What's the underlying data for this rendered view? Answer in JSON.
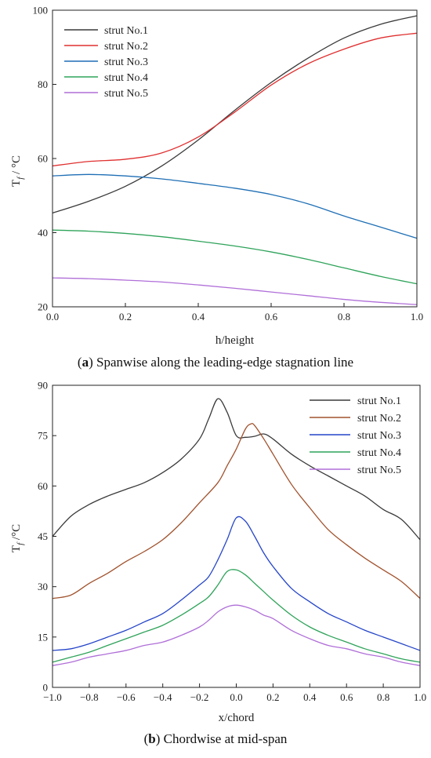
{
  "chart_data": [
    {
      "type": "line",
      "caption_letter": "a",
      "caption_text": "Spanwise along the leading-edge stagnation line",
      "xlabel": "h/height",
      "ylabel_main": "T",
      "ylabel_sub": "f",
      "ylabel_unit": " / °C",
      "xlim": [
        0.0,
        1.0
      ],
      "ylim": [
        20,
        100
      ],
      "xticks": [
        0.0,
        0.2,
        0.4,
        0.6,
        0.8,
        1.0
      ],
      "xtick_labels": [
        "0.0",
        "0.2",
        "0.4",
        "0.6",
        "0.8",
        "1.0"
      ],
      "yticks": [
        20,
        40,
        60,
        80,
        100
      ],
      "ytick_labels": [
        "20",
        "40",
        "60",
        "80",
        "100"
      ],
      "legend_position": "top-left",
      "series": [
        {
          "name": "strut No.1",
          "color": "#3a3a3a",
          "x": [
            0.0,
            0.1,
            0.2,
            0.3,
            0.4,
            0.5,
            0.6,
            0.7,
            0.8,
            0.9,
            1.0
          ],
          "y": [
            45.3,
            48.5,
            52.5,
            58.0,
            65.0,
            73.0,
            80.5,
            87.0,
            92.5,
            96.2,
            98.5
          ]
        },
        {
          "name": "strut No.2",
          "color": "#e03030",
          "x": [
            0.0,
            0.1,
            0.2,
            0.3,
            0.4,
            0.5,
            0.6,
            0.7,
            0.8,
            0.9,
            1.0
          ],
          "y": [
            58.0,
            59.2,
            59.8,
            61.5,
            65.8,
            72.5,
            79.8,
            85.5,
            89.5,
            92.5,
            93.8
          ]
        },
        {
          "name": "strut No.3",
          "color": "#1f6fb5",
          "x": [
            0.0,
            0.1,
            0.2,
            0.3,
            0.4,
            0.5,
            0.6,
            0.7,
            0.8,
            0.9,
            1.0
          ],
          "y": [
            55.3,
            55.7,
            55.3,
            54.5,
            53.3,
            52.0,
            50.3,
            47.8,
            44.5,
            41.5,
            38.5
          ]
        },
        {
          "name": "strut No.4",
          "color": "#2fa35a",
          "x": [
            0.0,
            0.1,
            0.2,
            0.3,
            0.4,
            0.5,
            0.6,
            0.7,
            0.8,
            0.9,
            1.0
          ],
          "y": [
            40.7,
            40.4,
            39.8,
            38.9,
            37.7,
            36.4,
            34.8,
            32.8,
            30.5,
            28.2,
            26.2
          ]
        },
        {
          "name": "strut No.5",
          "color": "#b06fd8",
          "x": [
            0.0,
            0.1,
            0.2,
            0.3,
            0.4,
            0.5,
            0.6,
            0.7,
            0.8,
            0.9,
            1.0
          ],
          "y": [
            27.8,
            27.6,
            27.2,
            26.7,
            25.9,
            25.0,
            24.0,
            23.0,
            22.0,
            21.2,
            20.6
          ]
        }
      ]
    },
    {
      "type": "line",
      "caption_letter": "b",
      "caption_text": "Chordwise at mid-span",
      "xlabel": "x/chord",
      "ylabel_main": "T",
      "ylabel_sub": "f",
      "ylabel_unit": " /°C",
      "xlim": [
        -1.0,
        1.0
      ],
      "ylim": [
        0,
        90
      ],
      "xticks": [
        -1.0,
        -0.8,
        -0.6,
        -0.4,
        -0.2,
        0.0,
        0.2,
        0.4,
        0.6,
        0.8,
        1.0
      ],
      "xtick_labels": [
        "−1.0",
        "−0.8",
        "−0.6",
        "−0.4",
        "−0.2",
        "0.0",
        "0.2",
        "0.4",
        "0.6",
        "0.8",
        "1.0"
      ],
      "yticks": [
        0,
        15,
        30,
        45,
        60,
        75,
        90
      ],
      "ytick_labels": [
        "0",
        "15",
        "30",
        "45",
        "60",
        "75",
        "90"
      ],
      "legend_position": "top-right",
      "series": [
        {
          "name": "strut No.1",
          "color": "#3a3a3a",
          "x": [
            -1.0,
            -0.9,
            -0.8,
            -0.7,
            -0.6,
            -0.5,
            -0.4,
            -0.3,
            -0.2,
            -0.15,
            -0.1,
            -0.05,
            0.0,
            0.05,
            0.1,
            0.15,
            0.2,
            0.3,
            0.4,
            0.5,
            0.6,
            0.7,
            0.8,
            0.9,
            1.0
          ],
          "y": [
            45.0,
            51.0,
            54.5,
            57.0,
            59.0,
            61.0,
            64.0,
            68.0,
            74.0,
            80.0,
            86.0,
            82.0,
            75.0,
            74.5,
            74.8,
            75.5,
            74.0,
            69.5,
            66.0,
            63.0,
            60.0,
            57.0,
            53.0,
            50.0,
            44.0
          ]
        },
        {
          "name": "strut No.2",
          "color": "#a0522d",
          "x": [
            -1.0,
            -0.9,
            -0.8,
            -0.7,
            -0.6,
            -0.5,
            -0.4,
            -0.3,
            -0.2,
            -0.1,
            -0.05,
            0.0,
            0.05,
            0.08,
            0.1,
            0.15,
            0.2,
            0.3,
            0.4,
            0.5,
            0.6,
            0.7,
            0.8,
            0.9,
            1.0
          ],
          "y": [
            26.5,
            27.5,
            31.0,
            34.0,
            37.5,
            40.5,
            44.0,
            49.0,
            55.0,
            61.0,
            66.0,
            71.0,
            77.0,
            78.5,
            78.0,
            74.0,
            69.5,
            60.5,
            53.5,
            47.0,
            42.5,
            38.5,
            35.0,
            31.5,
            26.5
          ]
        },
        {
          "name": "strut No.3",
          "color": "#2545c8",
          "x": [
            -1.0,
            -0.9,
            -0.8,
            -0.7,
            -0.6,
            -0.5,
            -0.4,
            -0.3,
            -0.2,
            -0.15,
            -0.1,
            -0.05,
            0.0,
            0.05,
            0.1,
            0.15,
            0.2,
            0.3,
            0.4,
            0.5,
            0.6,
            0.7,
            0.8,
            0.9,
            1.0
          ],
          "y": [
            11.0,
            11.5,
            13.0,
            15.0,
            17.0,
            19.5,
            22.0,
            26.0,
            30.5,
            33.0,
            38.0,
            44.0,
            50.5,
            49.5,
            45.0,
            40.0,
            36.0,
            29.5,
            25.5,
            22.0,
            19.5,
            17.0,
            15.0,
            13.0,
            11.0
          ]
        },
        {
          "name": "strut No.4",
          "color": "#2fa35a",
          "x": [
            -1.0,
            -0.9,
            -0.8,
            -0.7,
            -0.6,
            -0.5,
            -0.4,
            -0.3,
            -0.2,
            -0.15,
            -0.1,
            -0.05,
            0.0,
            0.05,
            0.1,
            0.15,
            0.2,
            0.3,
            0.4,
            0.5,
            0.6,
            0.7,
            0.8,
            0.9,
            1.0
          ],
          "y": [
            7.5,
            9.0,
            10.5,
            12.5,
            14.5,
            16.5,
            18.5,
            21.5,
            25.0,
            27.0,
            30.5,
            34.5,
            35.0,
            33.5,
            31.0,
            28.5,
            26.0,
            21.5,
            18.0,
            15.5,
            13.5,
            11.5,
            10.0,
            8.5,
            7.5
          ]
        },
        {
          "name": "strut No.5",
          "color": "#b06fd8",
          "x": [
            -1.0,
            -0.9,
            -0.8,
            -0.7,
            -0.6,
            -0.5,
            -0.4,
            -0.3,
            -0.2,
            -0.15,
            -0.1,
            -0.05,
            0.0,
            0.05,
            0.1,
            0.15,
            0.2,
            0.3,
            0.4,
            0.5,
            0.6,
            0.7,
            0.8,
            0.9,
            1.0
          ],
          "y": [
            6.5,
            7.5,
            9.0,
            10.0,
            11.0,
            12.5,
            13.5,
            15.5,
            18.0,
            20.0,
            22.5,
            24.0,
            24.5,
            24.0,
            23.0,
            21.5,
            20.5,
            17.0,
            14.5,
            12.5,
            11.5,
            10.0,
            9.0,
            7.5,
            6.5
          ]
        }
      ]
    }
  ]
}
